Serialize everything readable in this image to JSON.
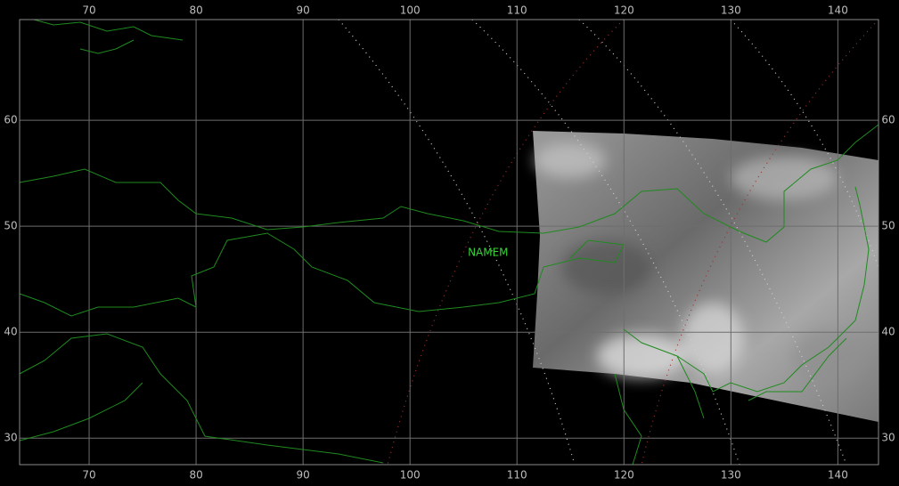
{
  "map": {
    "xlim": [
      63.5,
      143.8
    ],
    "ylim": [
      27.5,
      69.5
    ],
    "xticks": [
      70,
      80,
      90,
      100,
      110,
      120,
      130,
      140
    ],
    "yticks": [
      30,
      40,
      50,
      60
    ],
    "label": {
      "text": "NAMEM",
      "lon": 107.3,
      "lat": 47.5
    }
  }
}
